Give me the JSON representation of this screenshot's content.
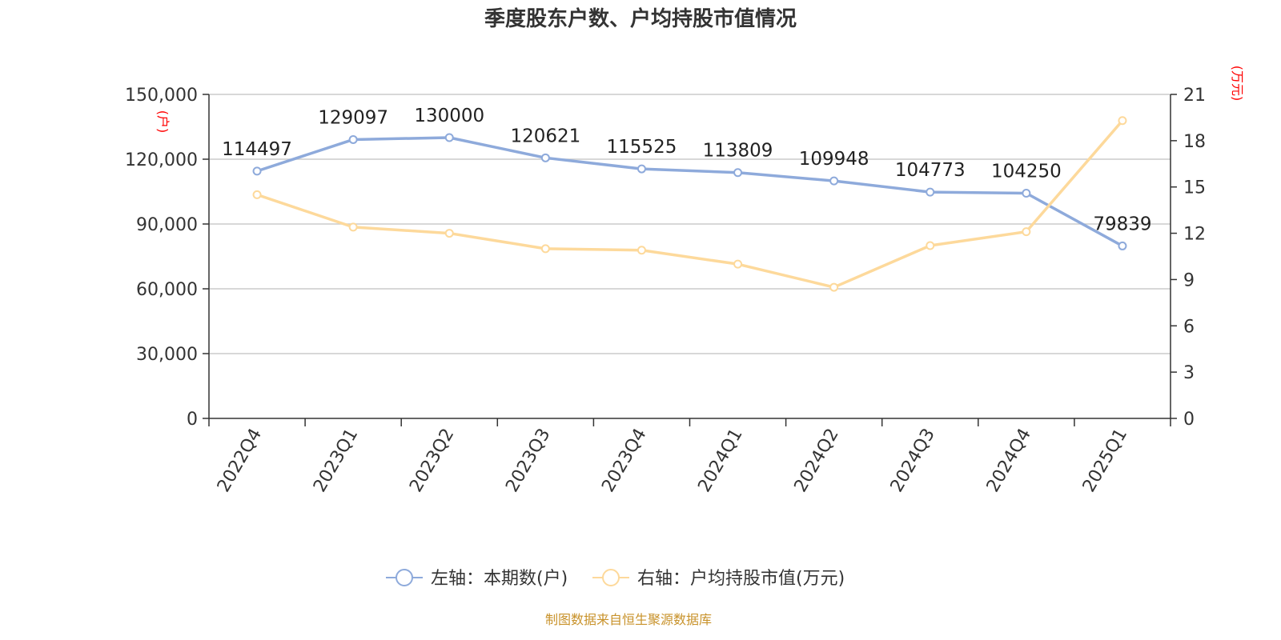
{
  "chart_data": {
    "type": "line",
    "title": "季度股东户数、户均持股市值情况",
    "categories": [
      "2022Q4",
      "2023Q1",
      "2023Q2",
      "2023Q3",
      "2023Q4",
      "2024Q1",
      "2024Q2",
      "2024Q3",
      "2024Q4",
      "2025Q1"
    ],
    "left_axis": {
      "unit": "(户)",
      "ylim": [
        0,
        150000
      ],
      "ticks": [
        "0",
        "30,000",
        "60,000",
        "90,000",
        "120,000",
        "150,000"
      ]
    },
    "right_axis": {
      "unit": "(万元)",
      "ylim": [
        0,
        21
      ],
      "ticks": [
        "0",
        "3",
        "6",
        "9",
        "12",
        "15",
        "18",
        "21"
      ]
    },
    "series": [
      {
        "name": "左轴：本期数(户)",
        "axis": "left",
        "color": "#8eaadb",
        "values": [
          114497,
          129097,
          130000,
          120621,
          115525,
          113809,
          109948,
          104773,
          104250,
          79839
        ],
        "labels": [
          "114497",
          "129097",
          "130000",
          "120621",
          "115525",
          "113809",
          "109948",
          "104773",
          "104250",
          "79839"
        ]
      },
      {
        "name": "右轴：户均持股市值(万元)",
        "axis": "right",
        "color": "#fdd99b",
        "values": [
          14.5,
          12.4,
          12.0,
          11.0,
          10.9,
          10.0,
          8.5,
          11.2,
          12.1,
          19.3
        ]
      }
    ],
    "grid": true,
    "legend_position": "bottom-center",
    "source": "制图数据来自恒生聚源数据库"
  }
}
